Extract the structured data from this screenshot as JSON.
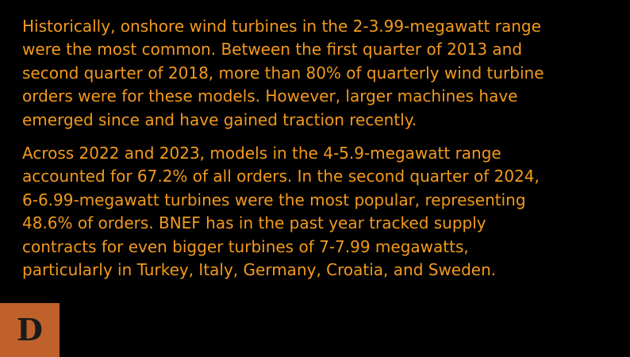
{
  "article": {
    "paragraphs": [
      "Historically, onshore wind turbines in the 2-3.99-megawatt range\nwere the most common. Between the first quarter of 2013 and\nsecond quarter of 2018, more than 80% of quarterly wind turbine\norders were for these models. However, larger machines have\nemerged since and have gained traction recently.",
      "Across 2022 and 2023, models in the 4-5.9-megawatt range\naccounted for 67.2% of all orders. In the second quarter of 2024,\n6-6.99-megawatt turbines were the most popular, representing\n48.6% of orders. BNEF has in the past year tracked supply\ncontracts for even bigger turbines of 7-7.99 megawatts,\nparticularly in Turkey, Italy, Germany, Croatia, and Sweden."
    ]
  },
  "badge": {
    "letter": "D"
  },
  "colors": {
    "background": "#000000",
    "text": "#f39a1e",
    "badge": "#c0612b"
  }
}
